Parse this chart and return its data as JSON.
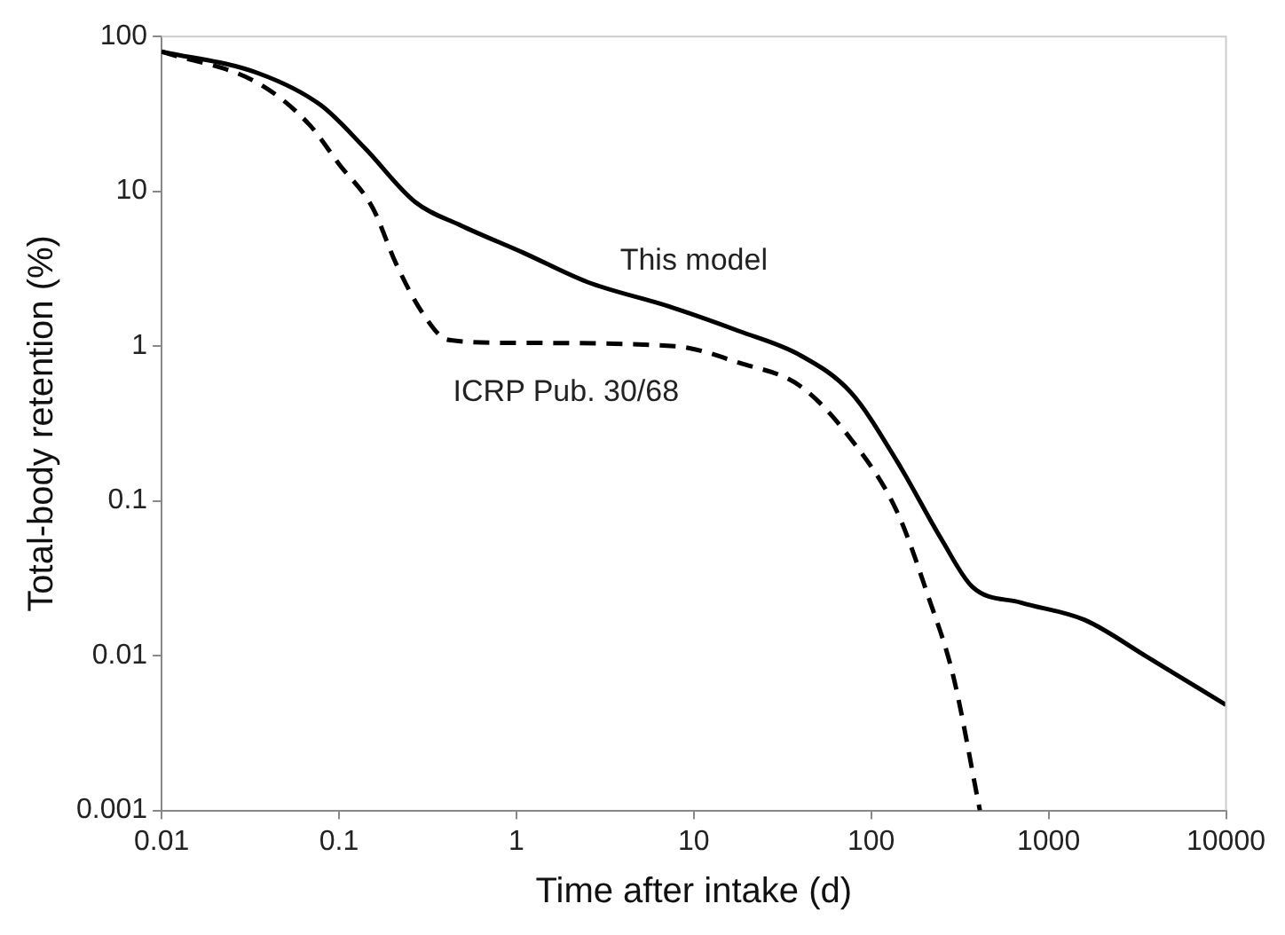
{
  "chart_data": {
    "type": "line",
    "xlabel": "Time after intake (d)",
    "ylabel": "Total-body retention (%)",
    "log": "xy",
    "grid": false,
    "legend": false,
    "marker": "none",
    "xlim": [
      0.01,
      10000
    ],
    "xticks": [
      0.01,
      0.1,
      1,
      10,
      100,
      1000,
      10000
    ],
    "ylim": [
      0.001,
      100
    ],
    "yticks": [
      0.001,
      0.01,
      0.1,
      1,
      10,
      100
    ],
    "series": [
      {
        "color": "#000000",
        "line_style": "solid",
        "x": [
          0.01,
          0.035,
          0.079,
          0.14,
          0.27,
          0.49,
          1.1,
          2.5,
          7.3,
          18,
          40,
          77,
          140,
          250,
          370,
          700,
          1600,
          3600,
          10000
        ],
        "values": [
          80,
          58,
          36,
          19,
          8.5,
          6,
          4,
          2.6,
          1.8,
          1.25,
          0.87,
          0.5,
          0.18,
          0.056,
          0.028,
          0.022,
          0.017,
          0.0098,
          0.0048
        ]
      },
      {
        "color": "#000000",
        "line_style": "dashed",
        "x": [
          0.01,
          0.035,
          0.068,
          0.1,
          0.155,
          0.21,
          0.3,
          0.41,
          0.93,
          7.8,
          18,
          40,
          77,
          140,
          210,
          290,
          410
        ],
        "values": [
          80,
          50,
          27,
          15,
          7.8,
          3.4,
          1.6,
          1.1,
          1.05,
          1.0,
          0.78,
          0.55,
          0.25,
          0.085,
          0.024,
          0.0074,
          0.001
        ]
      }
    ],
    "annotations": [
      "This model",
      "ICRP Pub. 30/68"
    ]
  }
}
